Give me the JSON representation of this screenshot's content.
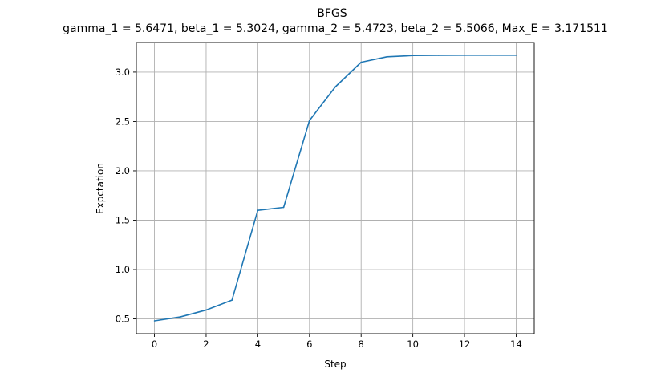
{
  "chart_data": {
    "type": "line",
    "title": "BFGS",
    "subtitle": "gamma_1 = 5.6471, beta_1 = 5.3024, gamma_2 = 5.4723, beta_2 = 5.5066, Max_E = 3.171511",
    "xlabel": "Step",
    "ylabel": "Expctation",
    "xlim": [
      -0.7,
      14.7
    ],
    "ylim": [
      0.35,
      3.3
    ],
    "xticks": [
      0,
      2,
      4,
      6,
      8,
      10,
      12,
      14
    ],
    "yticks": [
      0.5,
      1.0,
      1.5,
      2.0,
      2.5,
      3.0
    ],
    "xtick_labels": [
      "0",
      "2",
      "4",
      "6",
      "8",
      "10",
      "12",
      "14"
    ],
    "ytick_labels": [
      "0.5",
      "1.0",
      "1.5",
      "2.0",
      "2.5",
      "3.0"
    ],
    "grid": true,
    "series": [
      {
        "color": "#1f77b4",
        "x": [
          0,
          1,
          2,
          3,
          4,
          5,
          6,
          7,
          8,
          9,
          10,
          11,
          12,
          13,
          14
        ],
        "values": [
          0.48,
          0.52,
          0.59,
          0.69,
          1.6,
          1.63,
          2.51,
          2.85,
          3.1,
          3.155,
          3.168,
          3.1705,
          3.1713,
          3.1715,
          3.1715
        ]
      }
    ]
  }
}
